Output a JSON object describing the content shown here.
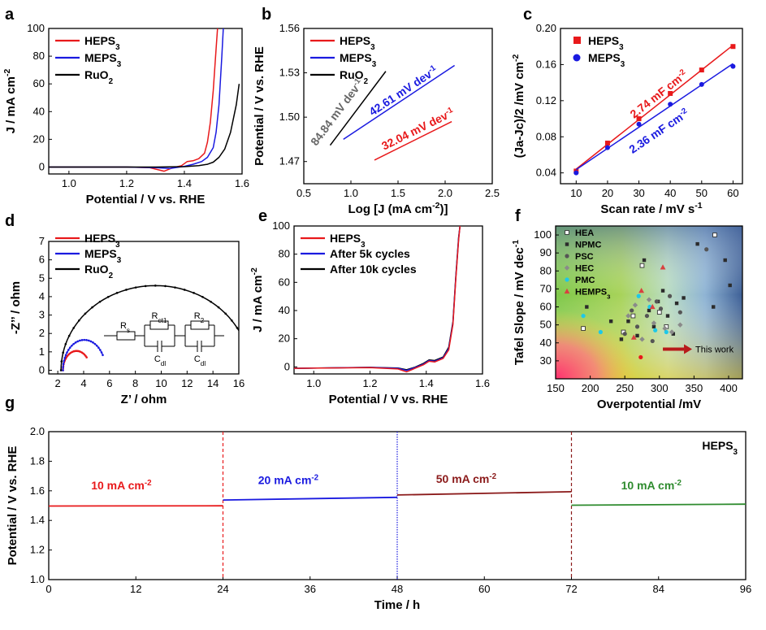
{
  "figure": {
    "panel_labels": [
      "a",
      "b",
      "c",
      "d",
      "e",
      "f",
      "g"
    ]
  },
  "chart_data": [
    {
      "panel": "a",
      "type": "line",
      "xlabel": "Potential / V vs. RHE",
      "ylabel": "J / mA cm⁻²",
      "xlim": [
        0.93,
        1.6
      ],
      "ylim": [
        -5,
        100
      ],
      "xticks": [
        "1.0",
        "1.2",
        "1.4",
        "1.6"
      ],
      "yticks": [
        "0",
        "20",
        "40",
        "60",
        "80",
        "100"
      ],
      "legend_position": "top-left",
      "series": [
        {
          "name": "HEPS₃",
          "color": "#e8191b",
          "x": [
            0.93,
            1.2,
            1.28,
            1.31,
            1.33,
            1.36,
            1.39,
            1.41,
            1.43,
            1.45,
            1.47,
            1.48,
            1.49,
            1.5,
            1.51,
            1.515
          ],
          "y": [
            0,
            0,
            -0.5,
            -2,
            -3,
            -0.5,
            1,
            4,
            4.5,
            6,
            10,
            18,
            32,
            55,
            85,
            100
          ]
        },
        {
          "name": "MEPS₃",
          "color": "#1a1ae0",
          "x": [
            0.93,
            1.2,
            1.3,
            1.35,
            1.4,
            1.43,
            1.46,
            1.48,
            1.5,
            1.51,
            1.52,
            1.53,
            1.535
          ],
          "y": [
            0,
            0,
            -0.5,
            -1,
            0.5,
            2,
            4,
            7,
            14,
            25,
            45,
            80,
            100
          ]
        },
        {
          "name": "RuO₂",
          "color": "#000000",
          "x": [
            0.93,
            1.3,
            1.4,
            1.45,
            1.48,
            1.5,
            1.52,
            1.54,
            1.56,
            1.58,
            1.59
          ],
          "y": [
            0,
            0,
            0.3,
            1,
            2,
            3.5,
            7,
            13,
            25,
            45,
            60
          ]
        }
      ]
    },
    {
      "panel": "b",
      "type": "line",
      "xlabel": "Log [J (mA cm⁻²)]",
      "ylabel": "Potential / V vs. RHE",
      "xlim": [
        0.5,
        2.5
      ],
      "ylim": [
        1.455,
        1.56
      ],
      "xticks": [
        "0.5",
        "1.0",
        "1.5",
        "2.0",
        "2.5"
      ],
      "yticks": [
        "1.47",
        "1.50",
        "1.53",
        "1.56"
      ],
      "legend_position": "top-left",
      "series": [
        {
          "name": "HEPS₃",
          "color": "#e8191b",
          "x": [
            1.25,
            2.07
          ],
          "y": [
            1.471,
            1.497
          ],
          "annotation": "32.04 mV dev⁻¹"
        },
        {
          "name": "MEPS₃",
          "color": "#1a1ae0",
          "x": [
            0.92,
            2.1
          ],
          "y": [
            1.485,
            1.535
          ],
          "annotation": "42.61 mV dev⁻¹"
        },
        {
          "name": "RuO₂",
          "color": "#000000",
          "x": [
            0.78,
            1.37
          ],
          "y": [
            1.481,
            1.531
          ],
          "annotation": "84.84 mV dev⁻¹"
        }
      ]
    },
    {
      "panel": "c",
      "type": "scatter",
      "xlabel": "Scan rate / mV s⁻¹",
      "ylabel": "(Ja-Jc)/2 /mV cm⁻²",
      "xlim": [
        5,
        63
      ],
      "ylim": [
        0.028,
        0.2
      ],
      "xticks": [
        "10",
        "20",
        "30",
        "40",
        "50",
        "60"
      ],
      "yticks": [
        "0.04",
        "0.08",
        "0.12",
        "0.16",
        "0.20"
      ],
      "legend_position": "top-left",
      "series": [
        {
          "name": "HEPS₃",
          "color": "#e8191b",
          "marker": "square",
          "x": [
            10,
            20,
            30,
            40,
            50,
            60
          ],
          "y": [
            0.042,
            0.073,
            0.1,
            0.128,
            0.154,
            0.18
          ],
          "annotation": "2.74 mF cm⁻²"
        },
        {
          "name": "MEPS₃",
          "color": "#1a1ae0",
          "marker": "circle",
          "x": [
            10,
            20,
            30,
            40,
            50,
            60
          ],
          "y": [
            0.04,
            0.068,
            0.094,
            0.116,
            0.138,
            0.158
          ],
          "annotation": "2.36 mF cm⁻²"
        }
      ]
    },
    {
      "panel": "d",
      "type": "line",
      "xlabel": "Z’ / ohm",
      "ylabel": "-Z’’ / ohm",
      "xlim": [
        1.3,
        16
      ],
      "ylim": [
        -0.2,
        7
      ],
      "xticks": [
        "2",
        "4",
        "6",
        "8",
        "10",
        "12",
        "14",
        "16"
      ],
      "yticks": [
        "0",
        "1",
        "2",
        "3",
        "4",
        "5",
        "6",
        "7"
      ],
      "legend_position": "top-left",
      "inset_labels": [
        "R",
        "s",
        "R",
        "ct1",
        "R",
        "2",
        "C",
        "dl",
        "C",
        "dl"
      ],
      "series": [
        {
          "name": "HEPS₃",
          "color": "#e8191b",
          "center": 3.45,
          "radius": 1.05,
          "sweep": 140
        },
        {
          "name": "MEPS₃",
          "color": "#1a1ae0",
          "center": 4.05,
          "radius": 1.65,
          "sweep": 150
        },
        {
          "name": "RuO₂",
          "color": "#000000",
          "center": 9.55,
          "radius": 7.3,
          "sweep": 156,
          "y_scale": 0.63
        }
      ]
    },
    {
      "panel": "e",
      "type": "line",
      "xlabel": "Potential / V vs. RHE",
      "ylabel": "J / mA cm⁻²",
      "xlim": [
        0.93,
        1.6
      ],
      "ylim": [
        -5,
        100
      ],
      "xticks": [
        "1.0",
        "1.2",
        "1.4",
        "1.6"
      ],
      "yticks": [
        "0",
        "20",
        "40",
        "60",
        "80",
        "100"
      ],
      "legend_position": "top-left",
      "series": [
        {
          "name": "HEPS₃",
          "color": "#e8191b",
          "x": [
            0.93,
            1.2,
            1.3,
            1.33,
            1.36,
            1.39,
            1.41,
            1.43,
            1.46,
            1.48,
            1.495,
            1.505,
            1.515,
            1.52
          ],
          "y": [
            -1,
            -0.5,
            -1.5,
            -3.5,
            -1,
            1.5,
            4,
            3.5,
            6,
            12,
            30,
            62,
            90,
            100
          ]
        },
        {
          "name": "After 5k cycles",
          "color": "#1a1ae0",
          "x": [
            0.93,
            1.2,
            1.3,
            1.33,
            1.36,
            1.39,
            1.41,
            1.43,
            1.46,
            1.48,
            1.495,
            1.505,
            1.515,
            1.52
          ],
          "y": [
            -1,
            -0.4,
            -1,
            -2.5,
            -0.5,
            2,
            4.5,
            4,
            6.5,
            13,
            31,
            63,
            91,
            100
          ]
        },
        {
          "name": "After 10k cycles",
          "color": "#000000",
          "x": [
            0.93,
            1.2,
            1.3,
            1.33,
            1.36,
            1.39,
            1.41,
            1.43,
            1.46,
            1.48,
            1.495,
            1.505,
            1.515,
            1.52
          ],
          "y": [
            -1,
            -0.3,
            -0.8,
            -2,
            -0.2,
            2.5,
            5,
            4.5,
            7,
            14,
            32,
            64,
            92,
            100
          ]
        }
      ]
    },
    {
      "panel": "f",
      "type": "scatter",
      "xlabel": "Overpotential /mV",
      "ylabel": "Tafel Slope / mV dec⁻¹",
      "xlim": [
        150,
        420
      ],
      "ylim": [
        20,
        105
      ],
      "xticks": [
        "150",
        "200",
        "250",
        "300",
        "350",
        "400"
      ],
      "yticks": [
        "30",
        "40",
        "50",
        "60",
        "70",
        "80",
        "90",
        "100"
      ],
      "legend_position": "top-left",
      "annotation": "This work",
      "series": [
        {
          "name": "HEA",
          "color": "#ffffff",
          "marker": "square-open",
          "x": [
            190,
            248,
            262,
            275,
            300,
            310,
            380
          ],
          "y": [
            48,
            46,
            55,
            83,
            57,
            49,
            100
          ]
        },
        {
          "name": "NPMC",
          "color": "#2b2b2b",
          "marker": "square",
          "x": [
            195,
            230,
            245,
            255,
            268,
            278,
            285,
            292,
            298,
            305,
            312,
            320,
            325,
            335,
            355,
            378,
            395,
            402
          ],
          "y": [
            60,
            52,
            42,
            52,
            44,
            86,
            58,
            49,
            63,
            69,
            55,
            45,
            62,
            65,
            95,
            60,
            86,
            72
          ]
        },
        {
          "name": "PSC",
          "color": "#555555",
          "marker": "circle",
          "x": [
            250,
            260,
            268,
            282,
            290,
            296,
            302,
            315,
            330,
            368
          ],
          "y": [
            45,
            58,
            49,
            55,
            41,
            63,
            59,
            66,
            57,
            92
          ]
        },
        {
          "name": "HEC",
          "color": "#8a8a8a",
          "marker": "diamond",
          "x": [
            255,
            265,
            275,
            285,
            292,
            308,
            318,
            330
          ],
          "y": [
            55,
            61,
            42,
            64,
            51,
            48,
            46,
            50
          ]
        },
        {
          "name": "PMC",
          "color": "#1ec8e8",
          "marker": "circle",
          "x": [
            190,
            215,
            270,
            286,
            294,
            310
          ],
          "y": [
            55,
            46,
            66,
            60,
            47,
            46
          ]
        },
        {
          "name": "HEMPS₃",
          "color": "#d94040",
          "marker": "triangle",
          "x": [
            263,
            274,
            290,
            305
          ],
          "y": [
            43,
            69,
            60,
            82
          ]
        },
        {
          "name": "This work",
          "color": "#e8191b",
          "marker": "circle",
          "x": [
            273
          ],
          "y": [
            32
          ]
        }
      ]
    },
    {
      "panel": "g",
      "type": "line",
      "xlabel": "Time / h",
      "ylabel": "Potential / V vs. RHE",
      "xlim": [
        0,
        96
      ],
      "ylim": [
        1.0,
        2.0
      ],
      "xticks": [
        "0",
        "12",
        "24",
        "36",
        "48",
        "60",
        "72",
        "84",
        "96"
      ],
      "yticks": [
        "1.0",
        "1.2",
        "1.4",
        "1.6",
        "1.8",
        "2.0"
      ],
      "legend": "HEPS₃",
      "annotations": [
        "10 mA cm⁻²",
        "20 mA cm⁻²",
        "50 mA cm⁻²",
        "10 mA cm⁻²"
      ],
      "series": [
        {
          "name": "10 mA cm⁻² (0–24 h)",
          "color": "#e8191b",
          "x": [
            0,
            24
          ],
          "y": [
            1.497,
            1.499
          ]
        },
        {
          "name": "20 mA cm⁻² (24–48 h)",
          "color": "#1a1ae0",
          "x": [
            24,
            48
          ],
          "y": [
            1.538,
            1.556
          ]
        },
        {
          "name": "50 mA cm⁻² (48–72 h)",
          "color": "#8b1a1a",
          "x": [
            48,
            72
          ],
          "y": [
            1.572,
            1.594
          ]
        },
        {
          "name": "10 mA cm⁻² (72–96 h)",
          "color": "#2e8b2e",
          "x": [
            72,
            96
          ],
          "y": [
            1.503,
            1.51
          ]
        }
      ],
      "dividers": [
        {
          "x": 24,
          "color": "#e8191b"
        },
        {
          "x": 48,
          "color": "#1a1ae0"
        },
        {
          "x": 72,
          "color": "#8b1a1a"
        }
      ]
    }
  ]
}
